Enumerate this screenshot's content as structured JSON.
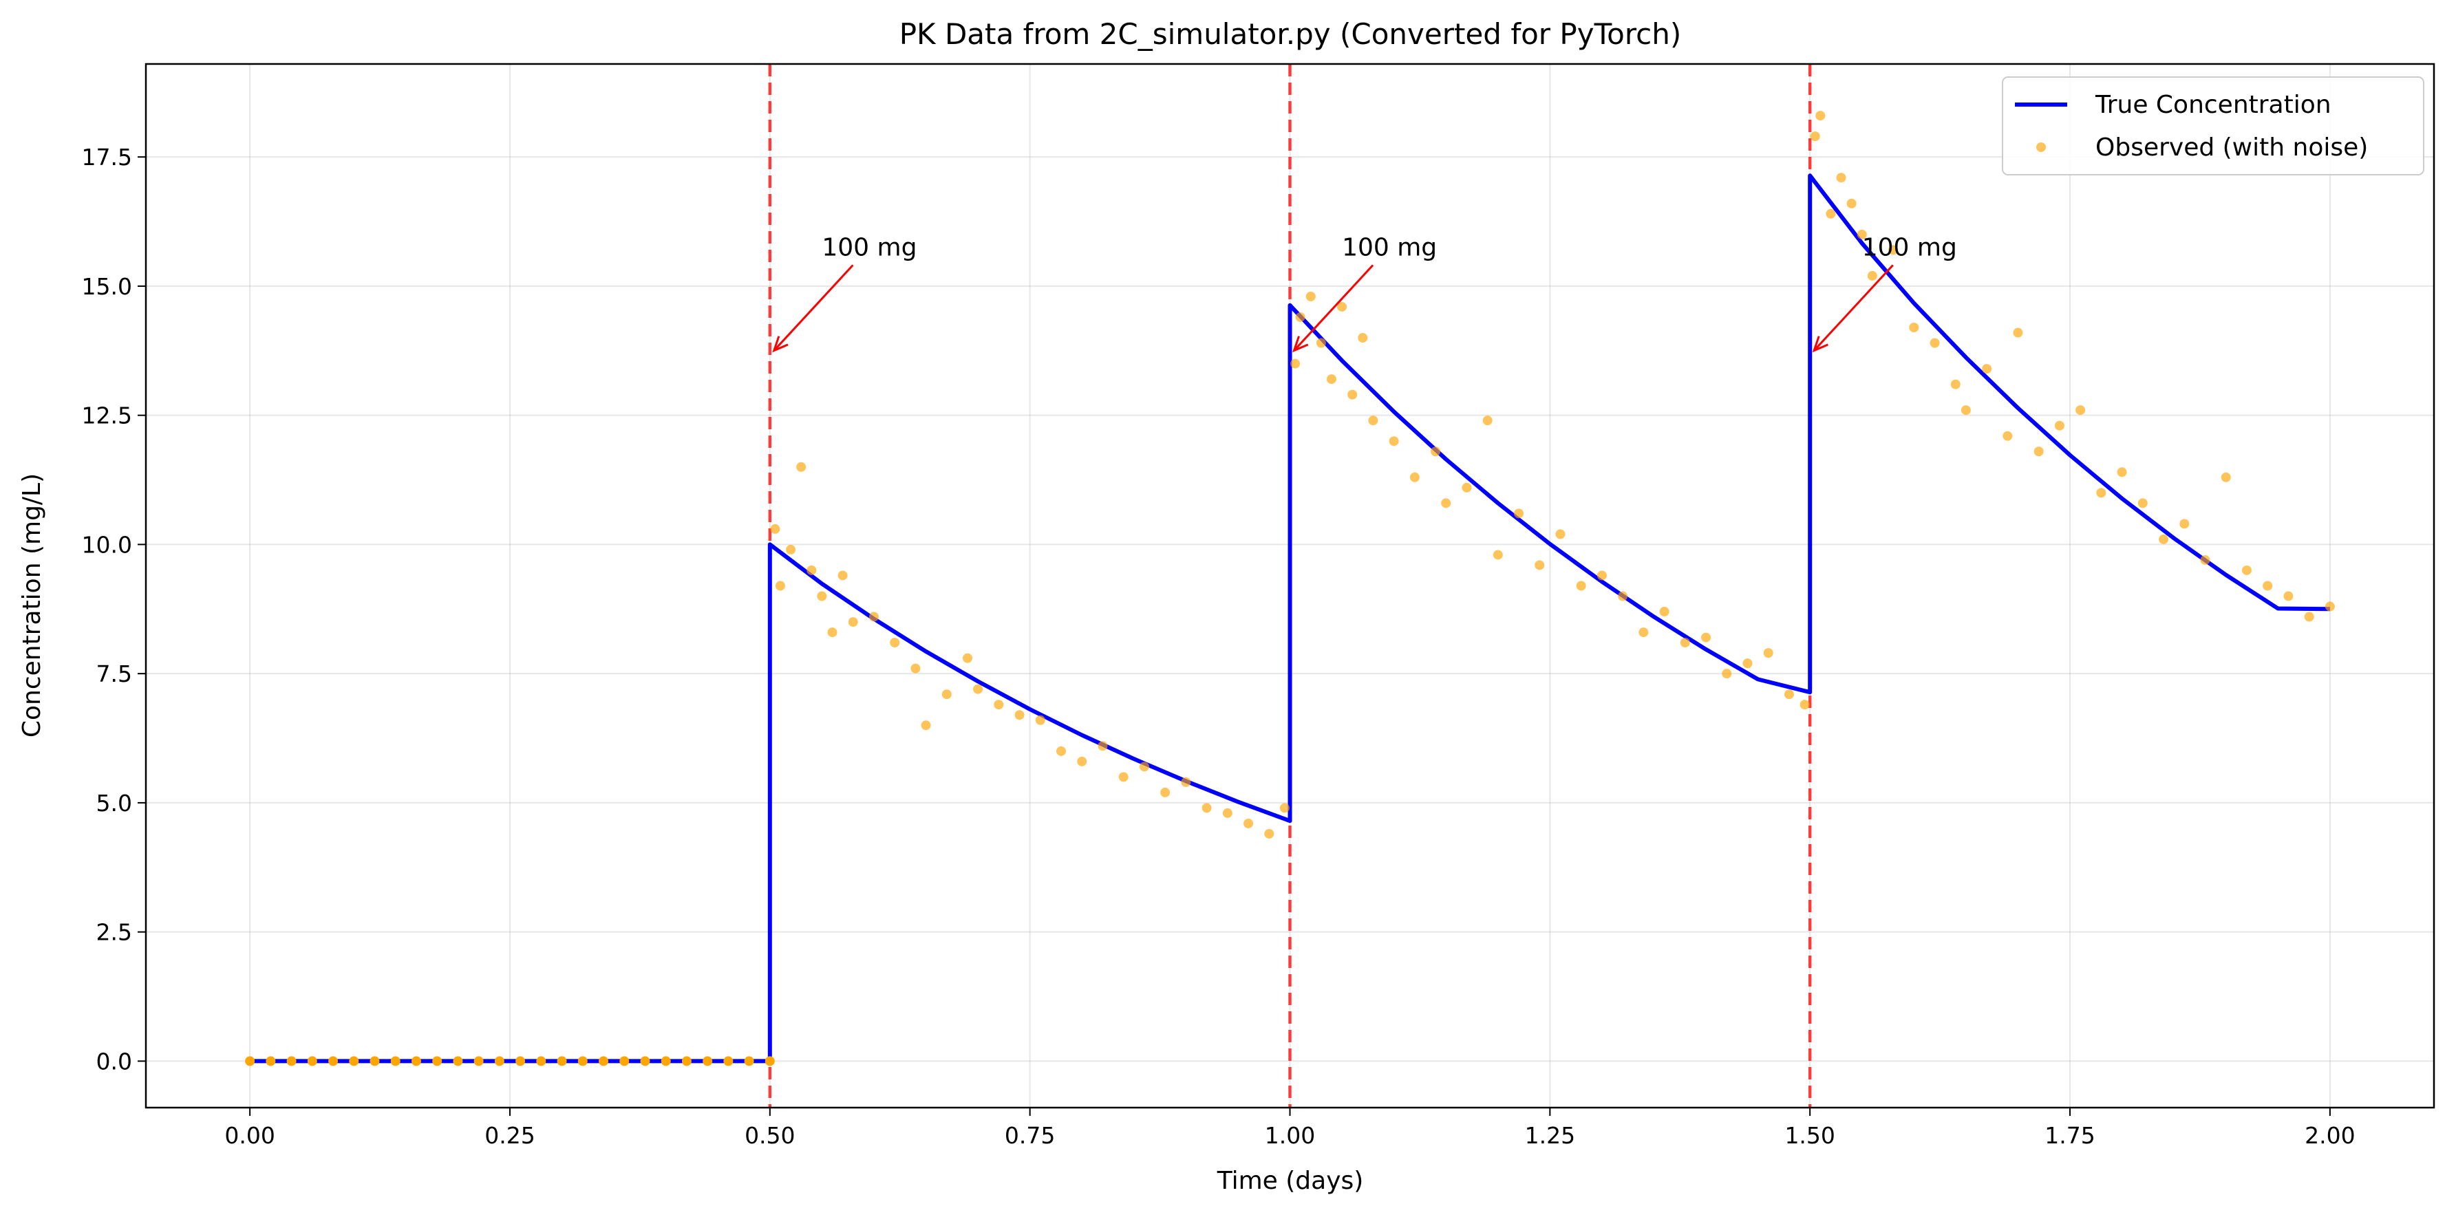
{
  "chart_data": {
    "type": "line",
    "title": "PK Data from 2C_simulator.py (Converted for PyTorch)",
    "xlabel": "Time (days)",
    "ylabel": "Concentration (mg/L)",
    "xlim": [
      -0.1,
      2.1
    ],
    "ylim": [
      -0.9,
      19.3
    ],
    "x_ticks": [
      0.0,
      0.25,
      0.5,
      0.75,
      1.0,
      1.25,
      1.5,
      1.75,
      2.0
    ],
    "x_tick_labels": [
      "0.00",
      "0.25",
      "0.50",
      "0.75",
      "1.00",
      "1.25",
      "1.50",
      "1.75",
      "2.00"
    ],
    "y_ticks": [
      0.0,
      2.5,
      5.0,
      7.5,
      10.0,
      12.5,
      15.0,
      17.5
    ],
    "y_tick_labels": [
      "0.0",
      "2.5",
      "5.0",
      "7.5",
      "10.0",
      "12.5",
      "15.0",
      "17.5"
    ],
    "grid": true,
    "legend_position": "top-right",
    "colors": {
      "true_line": "#0000ff",
      "observed": "#ffa500",
      "dose_line": "#ff0000",
      "annotation": "#ff0000"
    },
    "series": [
      {
        "name": "True Concentration",
        "style": "line",
        "x": [
          0.0,
          0.5,
          0.5,
          0.55,
          0.6,
          0.65,
          0.7,
          0.75,
          0.8,
          0.85,
          0.9,
          0.95,
          1.0,
          1.0,
          1.05,
          1.1,
          1.15,
          1.2,
          1.25,
          1.3,
          1.35,
          1.4,
          1.45,
          1.5,
          1.5,
          1.55,
          1.6,
          1.65,
          1.7,
          1.75,
          1.8,
          1.85,
          1.9,
          1.95,
          2.0
        ],
        "y": [
          0.0,
          0.0,
          10.0,
          9.24,
          8.56,
          7.93,
          7.35,
          6.81,
          6.31,
          5.85,
          5.42,
          5.02,
          4.65,
          14.63,
          13.56,
          12.57,
          11.65,
          10.8,
          10.01,
          9.28,
          8.6,
          7.97,
          7.39,
          7.14,
          17.14,
          15.83,
          14.67,
          13.62,
          12.64,
          11.73,
          10.89,
          10.12,
          9.41,
          8.76,
          8.75
        ]
      },
      {
        "name": "Observed (with noise)",
        "style": "scatter",
        "x": [
          0.0,
          0.02,
          0.04,
          0.06,
          0.08,
          0.1,
          0.12,
          0.14,
          0.16,
          0.18,
          0.2,
          0.22,
          0.24,
          0.26,
          0.28,
          0.3,
          0.32,
          0.34,
          0.36,
          0.38,
          0.4,
          0.42,
          0.44,
          0.46,
          0.48,
          0.5,
          0.505,
          0.51,
          0.52,
          0.53,
          0.54,
          0.55,
          0.56,
          0.57,
          0.58,
          0.6,
          0.62,
          0.64,
          0.65,
          0.67,
          0.69,
          0.7,
          0.72,
          0.74,
          0.76,
          0.78,
          0.8,
          0.82,
          0.84,
          0.86,
          0.88,
          0.9,
          0.92,
          0.94,
          0.96,
          0.98,
          0.995,
          1.005,
          1.01,
          1.02,
          1.03,
          1.04,
          1.05,
          1.06,
          1.07,
          1.08,
          1.1,
          1.12,
          1.14,
          1.15,
          1.17,
          1.19,
          1.2,
          1.22,
          1.24,
          1.26,
          1.28,
          1.3,
          1.32,
          1.34,
          1.36,
          1.38,
          1.4,
          1.42,
          1.44,
          1.46,
          1.48,
          1.495,
          1.505,
          1.51,
          1.52,
          1.53,
          1.54,
          1.55,
          1.56,
          1.58,
          1.6,
          1.62,
          1.64,
          1.65,
          1.67,
          1.69,
          1.7,
          1.72,
          1.74,
          1.76,
          1.78,
          1.8,
          1.82,
          1.84,
          1.86,
          1.88,
          1.9,
          1.92,
          1.94,
          1.96,
          1.98,
          2.0
        ],
        "y": [
          0.0,
          0.0,
          0.0,
          0.0,
          0.0,
          0.0,
          0.0,
          0.0,
          0.0,
          0.0,
          0.0,
          0.0,
          0.0,
          0.0,
          0.0,
          0.0,
          0.0,
          0.0,
          0.0,
          0.0,
          0.0,
          0.0,
          0.0,
          0.0,
          0.0,
          0.0,
          10.3,
          9.2,
          9.9,
          11.5,
          9.5,
          9.0,
          8.3,
          9.4,
          8.5,
          8.6,
          8.1,
          7.6,
          6.5,
          7.1,
          7.8,
          7.2,
          6.9,
          6.7,
          6.6,
          6.0,
          5.8,
          6.1,
          5.5,
          5.7,
          5.2,
          5.4,
          4.9,
          4.8,
          4.6,
          4.4,
          4.9,
          13.5,
          14.4,
          14.8,
          13.9,
          13.2,
          14.6,
          12.9,
          14.0,
          12.4,
          12.0,
          11.3,
          11.8,
          10.8,
          11.1,
          12.4,
          9.8,
          10.6,
          9.6,
          10.2,
          9.2,
          9.4,
          9.0,
          8.3,
          8.7,
          8.1,
          8.2,
          7.5,
          7.7,
          7.9,
          7.1,
          6.9,
          17.9,
          18.3,
          16.4,
          17.1,
          16.6,
          16.0,
          15.2,
          15.7,
          14.2,
          13.9,
          13.1,
          12.6,
          13.4,
          12.1,
          14.1,
          11.8,
          12.3,
          12.6,
          11.0,
          11.4,
          10.8,
          10.1,
          10.4,
          9.7,
          11.3,
          9.5,
          9.2,
          9.0,
          8.6,
          8.8
        ]
      }
    ],
    "dose_times": [
      0.5,
      1.0,
      1.5
    ],
    "annotations": [
      {
        "text": "100 mg",
        "x": 0.5,
        "y": 13.7,
        "text_x": 0.55,
        "text_y": 15.3
      },
      {
        "text": "100 mg",
        "x": 1.0,
        "y": 13.7,
        "text_x": 1.05,
        "text_y": 15.3
      },
      {
        "text": "100 mg",
        "x": 1.5,
        "y": 13.7,
        "text_x": 1.55,
        "text_y": 15.3
      }
    ]
  }
}
